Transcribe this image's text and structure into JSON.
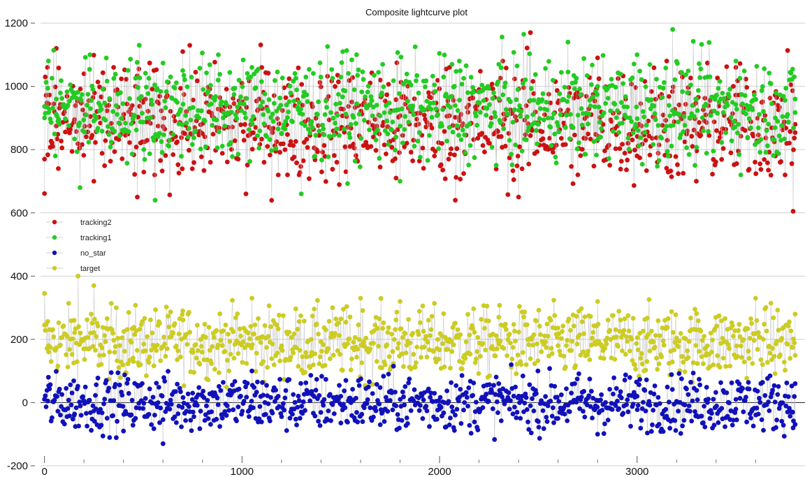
{
  "chart_data": {
    "type": "scatter",
    "title": "Composite lightcurve plot",
    "xlabel": "",
    "ylabel": "",
    "xlim": [
      -20,
      3850
    ],
    "ylim": [
      -200,
      1240
    ],
    "x_ticks": [
      0,
      1000,
      2000,
      3000
    ],
    "y_ticks": [
      1200,
      1000,
      800,
      600,
      400,
      200,
      0,
      -200
    ],
    "grid": true,
    "legend_position": "left, mid-height",
    "connecting_lines": true,
    "x_range": [
      0,
      3800
    ],
    "series": [
      {
        "name": "tracking2",
        "color": "#cc1111",
        "mean": 880,
        "spread": 90,
        "min": 605,
        "max": 1180,
        "sample": [
          [
            0,
            770
          ],
          [
            15,
            1060
          ],
          [
            60,
            1120
          ],
          [
            70,
            740
          ],
          [
            200,
            1040
          ],
          [
            250,
            700
          ],
          [
            350,
            1060
          ],
          [
            470,
            650
          ],
          [
            700,
            1110
          ],
          [
            840,
            760
          ],
          [
            1000,
            1010
          ],
          [
            1020,
            660
          ],
          [
            1100,
            1060
          ],
          [
            1230,
            720
          ],
          [
            1480,
            760
          ],
          [
            1700,
            1020
          ],
          [
            1780,
            710
          ],
          [
            2050,
            1060
          ],
          [
            2080,
            640
          ],
          [
            2200,
            990
          ],
          [
            2320,
            1080
          ],
          [
            2400,
            650
          ],
          [
            2460,
            1170
          ],
          [
            2700,
            720
          ],
          [
            2800,
            1090
          ],
          [
            3000,
            780
          ],
          [
            3150,
            1080
          ],
          [
            3300,
            700
          ],
          [
            3500,
            1060
          ],
          [
            3700,
            780
          ],
          [
            3790,
            605
          ],
          [
            3800,
            880
          ]
        ]
      },
      {
        "name": "tracking1",
        "color": "#22cc22",
        "mean": 930,
        "spread": 80,
        "min": 640,
        "max": 1180,
        "sample": [
          [
            0,
            900
          ],
          [
            20,
            1080
          ],
          [
            60,
            960
          ],
          [
            180,
            680
          ],
          [
            230,
            1100
          ],
          [
            480,
            1130
          ],
          [
            560,
            640
          ],
          [
            700,
            1050
          ],
          [
            880,
            1100
          ],
          [
            1050,
            1060
          ],
          [
            1300,
            660
          ],
          [
            1510,
            1110
          ],
          [
            1580,
            1100
          ],
          [
            1800,
            700
          ],
          [
            2100,
            1080
          ],
          [
            2300,
            1070
          ],
          [
            2500,
            880
          ],
          [
            2650,
            1140
          ],
          [
            2800,
            1000
          ],
          [
            3000,
            1100
          ],
          [
            3180,
            1180
          ],
          [
            3300,
            960
          ],
          [
            3500,
            1080
          ],
          [
            3700,
            900
          ],
          [
            3800,
            960
          ]
        ]
      },
      {
        "name": "no_star",
        "color": "#1111bb",
        "mean": 0,
        "spread": 45,
        "min": -130,
        "max": 120,
        "sample": [
          [
            0,
            10
          ],
          [
            20,
            80
          ],
          [
            150,
            -40
          ],
          [
            260,
            -20
          ],
          [
            400,
            -90
          ],
          [
            600,
            -130
          ],
          [
            750,
            30
          ],
          [
            1050,
            100
          ],
          [
            1300,
            -30
          ],
          [
            1500,
            20
          ],
          [
            1700,
            -70
          ],
          [
            2000,
            -20
          ],
          [
            2300,
            60
          ],
          [
            2500,
            -60
          ],
          [
            2800,
            -100
          ],
          [
            3000,
            20
          ],
          [
            3300,
            -40
          ],
          [
            3500,
            10
          ],
          [
            3790,
            -80
          ],
          [
            3800,
            60
          ]
        ]
      },
      {
        "name": "target",
        "color": "#cccc22",
        "mean": 190,
        "spread": 55,
        "min": -50,
        "max": 400,
        "sample": [
          [
            0,
            345
          ],
          [
            20,
            180
          ],
          [
            150,
            260
          ],
          [
            170,
            400
          ],
          [
            250,
            370
          ],
          [
            450,
            130
          ],
          [
            700,
            290
          ],
          [
            900,
            180
          ],
          [
            1050,
            330
          ],
          [
            1350,
            200
          ],
          [
            1600,
            330
          ],
          [
            1800,
            320
          ],
          [
            2050,
            200
          ],
          [
            2300,
            270
          ],
          [
            2600,
            180
          ],
          [
            2800,
            320
          ],
          [
            3050,
            130
          ],
          [
            3300,
            230
          ],
          [
            3600,
            330
          ],
          [
            3800,
            280
          ]
        ]
      }
    ]
  }
}
